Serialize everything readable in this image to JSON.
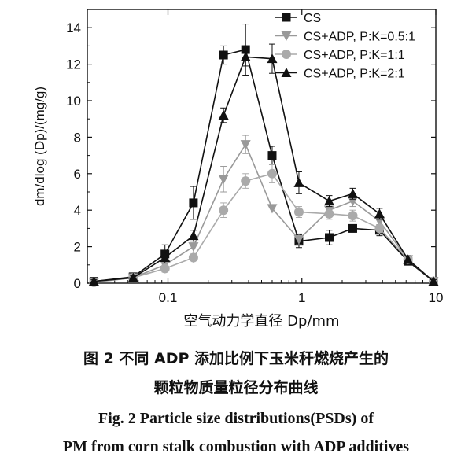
{
  "chart_data": {
    "type": "line",
    "xscale": "log",
    "xlim": [
      0.025,
      10
    ],
    "ylim": [
      0,
      15
    ],
    "xticks": [
      0.1,
      1,
      10
    ],
    "xtick_labels": [
      "0.1",
      "1",
      "10"
    ],
    "yticks": [
      0,
      2,
      4,
      6,
      8,
      10,
      12,
      14
    ],
    "ytick_labels": [
      "0",
      "2",
      "4",
      "6",
      "8",
      "10",
      "12",
      "14"
    ],
    "xlabel": "空气动力学直径 Dp/mm",
    "ylabel": "dm/dlog (Dp)/(mg/g)",
    "legend_position": "top-right",
    "x": [
      0.028,
      0.055,
      0.095,
      0.155,
      0.26,
      0.38,
      0.6,
      0.95,
      1.6,
      2.4,
      3.8,
      6.2,
      9.6
    ],
    "series": [
      {
        "name": "CS",
        "marker": "square",
        "color": "#111111",
        "values": [
          0.1,
          0.35,
          1.6,
          4.4,
          12.5,
          12.8,
          7.0,
          2.3,
          2.5,
          3.0,
          2.9,
          1.2,
          0.1
        ],
        "errors": [
          0.1,
          0.15,
          0.5,
          0.9,
          0.5,
          1.4,
          0.5,
          0.35,
          0.4,
          0.2,
          0.3,
          0.2,
          0.1
        ]
      },
      {
        "name": "CS+ADP, P:K=0.5:1",
        "marker": "triangle-down",
        "color": "#999999",
        "values": [
          0.05,
          0.3,
          1.0,
          2.0,
          5.7,
          7.6,
          4.1,
          2.4,
          4.0,
          4.5,
          3.4,
          1.3,
          0.1
        ],
        "errors": [
          0.05,
          0.1,
          0.3,
          0.4,
          0.7,
          0.5,
          0.2,
          0.3,
          0.3,
          0.3,
          0.3,
          0.2,
          0.1
        ]
      },
      {
        "name": "CS+ADP, P:K=1:1",
        "marker": "circle",
        "color": "#aaaaaa",
        "values": [
          0.05,
          0.3,
          0.8,
          1.4,
          4.0,
          5.6,
          6.0,
          3.9,
          3.8,
          3.7,
          3.0,
          1.3,
          0.1
        ],
        "errors": [
          0.05,
          0.1,
          0.2,
          0.3,
          0.4,
          0.4,
          0.5,
          0.3,
          0.3,
          0.3,
          0.3,
          0.2,
          0.1
        ]
      },
      {
        "name": "CS+ADP, P:K=2:1",
        "marker": "triangle-up",
        "color": "#111111",
        "values": [
          0.1,
          0.3,
          1.4,
          2.6,
          9.2,
          12.4,
          12.3,
          5.5,
          4.5,
          4.9,
          3.8,
          1.3,
          0.1
        ],
        "errors": [
          0.1,
          0.1,
          0.3,
          0.3,
          0.4,
          0.5,
          0.8,
          0.6,
          0.3,
          0.3,
          0.3,
          0.2,
          0.1
        ]
      }
    ]
  },
  "caption": {
    "zh_line1": "图 2   不同 ADP 添加比例下玉米秆燃烧产生的",
    "zh_line2": "颗粒物质量粒径分布曲线",
    "en_line1": "Fig. 2    Particle size distributions(PSDs) of",
    "en_line2": "PM from corn stalk combustion with ADP additives"
  }
}
